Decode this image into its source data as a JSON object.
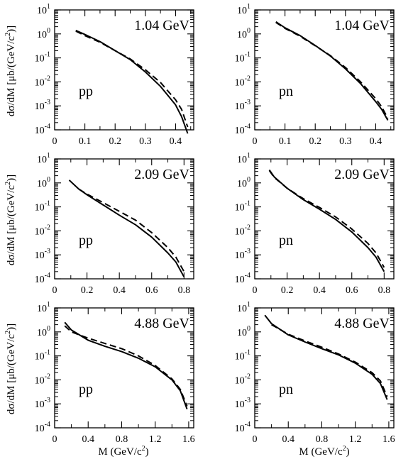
{
  "figure": {
    "ylabel_prefix": "dσ/dM [μb/(GeV/c",
    "ylabel_sup": "2",
    "ylabel_suffix": ")]",
    "xlabel_prefix": "M (GeV/c",
    "xlabel_sup": "2",
    "xlabel_suffix": ")"
  },
  "chart_data": [
    {
      "type": "line",
      "energy": "1.04 GeV",
      "reaction": "pp",
      "yscale": "log",
      "xlim": [
        0,
        0.46
      ],
      "ylim": [
        0.0001,
        10
      ],
      "xticks": [
        "0",
        "0.1",
        "0.2",
        "0.3",
        "0.4"
      ],
      "xtick_values": [
        0,
        0.1,
        0.2,
        0.3,
        0.4
      ],
      "series": [
        {
          "style": "solid",
          "x": [
            0.07,
            0.1,
            0.15,
            0.2,
            0.25,
            0.3,
            0.35,
            0.4,
            0.42,
            0.44
          ],
          "y": [
            1.4,
            0.95,
            0.48,
            0.2,
            0.085,
            0.026,
            0.0065,
            0.0011,
            0.00035,
            7e-05
          ]
        },
        {
          "style": "dashed",
          "x": [
            0.07,
            0.1,
            0.15,
            0.2,
            0.25,
            0.3,
            0.35,
            0.4,
            0.42,
            0.44
          ],
          "y": [
            1.3,
            0.85,
            0.45,
            0.2,
            0.09,
            0.032,
            0.0095,
            0.0018,
            0.0007,
            0.00013
          ]
        }
      ]
    },
    {
      "type": "line",
      "energy": "1.04 GeV",
      "reaction": "pn",
      "yscale": "log",
      "xlim": [
        0,
        0.46
      ],
      "ylim": [
        0.0001,
        10
      ],
      "xticks": [
        "0",
        "0.1",
        "0.2",
        "0.3",
        "0.4"
      ],
      "xtick_values": [
        0,
        0.1,
        0.2,
        0.3,
        0.4
      ],
      "series": [
        {
          "style": "solid",
          "x": [
            0.07,
            0.1,
            0.15,
            0.2,
            0.25,
            0.3,
            0.35,
            0.4,
            0.42,
            0.44
          ],
          "y": [
            3.2,
            1.8,
            0.85,
            0.33,
            0.12,
            0.035,
            0.0085,
            0.0015,
            0.0007,
            0.00025
          ]
        },
        {
          "style": "dashed",
          "x": [
            0.07,
            0.1,
            0.15,
            0.2,
            0.25,
            0.3,
            0.35,
            0.4,
            0.42,
            0.44
          ],
          "y": [
            3.0,
            1.7,
            0.8,
            0.32,
            0.125,
            0.04,
            0.01,
            0.002,
            0.0009,
            0.0003
          ]
        }
      ]
    },
    {
      "type": "line",
      "energy": "2.09 GeV",
      "reaction": "pp",
      "yscale": "log",
      "xlim": [
        0,
        0.86
      ],
      "ylim": [
        0.0001,
        10
      ],
      "xticks": [
        "0",
        "0.2",
        "0.4",
        "0.6",
        "0.8"
      ],
      "xtick_values": [
        0,
        0.2,
        0.4,
        0.6,
        0.8
      ],
      "series": [
        {
          "style": "solid",
          "x": [
            0.09,
            0.15,
            0.2,
            0.3,
            0.4,
            0.5,
            0.6,
            0.7,
            0.75,
            0.8
          ],
          "y": [
            1.3,
            0.55,
            0.32,
            0.12,
            0.045,
            0.018,
            0.0055,
            0.0012,
            0.0005,
            0.00012
          ]
        },
        {
          "style": "dashed",
          "x": [
            0.15,
            0.2,
            0.3,
            0.4,
            0.5,
            0.6,
            0.7,
            0.75,
            0.8
          ],
          "y": [
            0.55,
            0.34,
            0.15,
            0.065,
            0.028,
            0.0085,
            0.002,
            0.0008,
            0.0002
          ]
        }
      ]
    },
    {
      "type": "line",
      "energy": "2.09 GeV",
      "reaction": "pn",
      "yscale": "log",
      "xlim": [
        0,
        0.86
      ],
      "ylim": [
        0.0001,
        10
      ],
      "xticks": [
        "0",
        "0.2",
        "0.4",
        "0.6",
        "0.8"
      ],
      "xtick_values": [
        0,
        0.2,
        0.4,
        0.6,
        0.8
      ],
      "series": [
        {
          "style": "solid",
          "x": [
            0.09,
            0.12,
            0.2,
            0.3,
            0.4,
            0.5,
            0.6,
            0.7,
            0.75,
            0.8
          ],
          "y": [
            3.5,
            1.8,
            0.6,
            0.2,
            0.08,
            0.03,
            0.009,
            0.002,
            0.0008,
            0.0002
          ]
        },
        {
          "style": "dashed",
          "x": [
            0.09,
            0.12,
            0.2,
            0.3,
            0.4,
            0.5,
            0.6,
            0.7,
            0.75,
            0.8
          ],
          "y": [
            3.3,
            1.7,
            0.6,
            0.22,
            0.095,
            0.038,
            0.012,
            0.003,
            0.0012,
            0.0003
          ]
        }
      ]
    },
    {
      "type": "line",
      "energy": "4.88 GeV",
      "reaction": "pp",
      "yscale": "log",
      "xlim": [
        0,
        1.66
      ],
      "ylim": [
        0.0001,
        10
      ],
      "xticks": [
        "0",
        "0.4",
        "0.8",
        "1.2",
        "1.6"
      ],
      "xtick_values": [
        0,
        0.4,
        0.8,
        1.2,
        1.6
      ],
      "series": [
        {
          "style": "solid",
          "x": [
            0.12,
            0.2,
            0.4,
            0.6,
            0.8,
            1.0,
            1.2,
            1.4,
            1.5,
            1.58
          ],
          "y": [
            2.5,
            1.2,
            0.45,
            0.25,
            0.15,
            0.08,
            0.035,
            0.01,
            0.0035,
            0.0006
          ]
        },
        {
          "style": "dashed",
          "x": [
            0.12,
            0.2,
            0.4,
            0.6,
            0.8,
            1.0,
            1.2,
            1.4,
            1.5,
            1.58
          ],
          "y": [
            1.8,
            1.0,
            0.55,
            0.33,
            0.2,
            0.1,
            0.04,
            0.011,
            0.004,
            0.0008
          ]
        }
      ]
    },
    {
      "type": "line",
      "energy": "4.88 GeV",
      "reaction": "pn",
      "yscale": "log",
      "xlim": [
        0,
        1.66
      ],
      "ylim": [
        0.0001,
        10
      ],
      "xticks": [
        "0",
        "0.4",
        "0.8",
        "1.2",
        "1.6"
      ],
      "xtick_values": [
        0,
        0.4,
        0.8,
        1.2,
        1.6
      ],
      "series": [
        {
          "style": "solid",
          "x": [
            0.12,
            0.2,
            0.4,
            0.6,
            0.8,
            1.0,
            1.2,
            1.4,
            1.5,
            1.58
          ],
          "y": [
            5.0,
            2.2,
            0.75,
            0.38,
            0.2,
            0.11,
            0.05,
            0.017,
            0.007,
            0.0015
          ]
        },
        {
          "style": "dashed",
          "x": [
            0.2,
            0.4,
            0.6,
            0.8,
            1.0,
            1.2,
            1.4,
            1.5,
            1.58
          ],
          "y": [
            2.0,
            0.8,
            0.42,
            0.23,
            0.12,
            0.055,
            0.02,
            0.009,
            0.002
          ]
        }
      ]
    }
  ]
}
